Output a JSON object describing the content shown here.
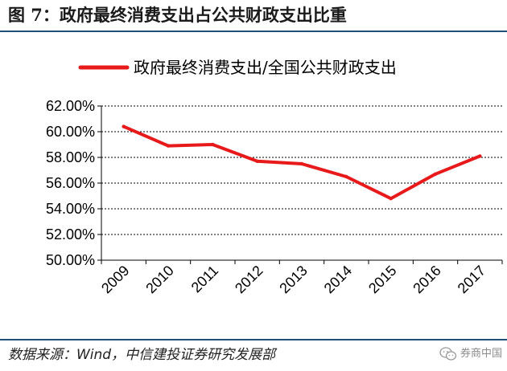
{
  "figure": {
    "title": "图 7：政府最终消费支出占公共财政支出比重",
    "source": "数据来源：Wind，中信建投证券研究发展部",
    "watermark": "券商中国"
  },
  "chart_data": {
    "type": "line",
    "title": "图 7：政府最终消费支出占公共财政支出比重",
    "xlabel": "",
    "ylabel": "",
    "categories": [
      "2009",
      "2010",
      "2011",
      "2012",
      "2013",
      "2014",
      "2015",
      "2016",
      "2017"
    ],
    "series": [
      {
        "name": "政府最终消费支出/全国公共财政支出",
        "values": [
          60.4,
          58.9,
          59.0,
          57.7,
          57.5,
          56.5,
          54.8,
          56.7,
          58.1
        ],
        "color": "#e8191a"
      }
    ],
    "ylim": [
      50,
      62
    ],
    "yticks": [
      50,
      52,
      54,
      56,
      58,
      60,
      62
    ],
    "ytick_labels": [
      "50.00%",
      "52.00%",
      "54.00%",
      "56.00%",
      "58.00%",
      "60.00%",
      "62.00%"
    ],
    "grid": true,
    "legend": "top"
  }
}
